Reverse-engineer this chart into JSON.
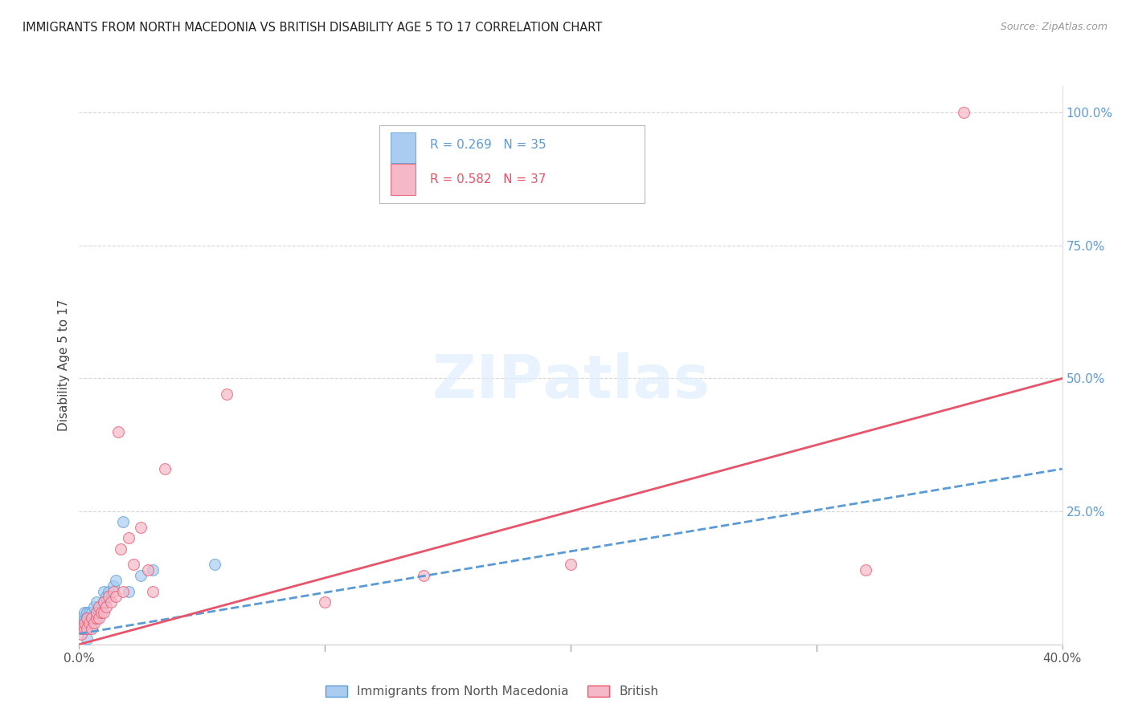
{
  "title": "IMMIGRANTS FROM NORTH MACEDONIA VS BRITISH DISABILITY AGE 5 TO 17 CORRELATION CHART",
  "source": "Source: ZipAtlas.com",
  "ylabel": "Disability Age 5 to 17",
  "xlim": [
    0.0,
    0.4
  ],
  "ylim": [
    0.0,
    1.05
  ],
  "grid_color": "#d8d8d8",
  "background_color": "#ffffff",
  "legend_label1": "Immigrants from North Macedonia",
  "legend_label2": "British",
  "blue_color": "#aaccf0",
  "pink_color": "#f5b8c8",
  "line_blue_color": "#5b9bd5",
  "line_pink_color": "#e8546a",
  "blue_scatter_x": [
    0.001,
    0.001,
    0.001,
    0.002,
    0.002,
    0.002,
    0.002,
    0.003,
    0.003,
    0.003,
    0.003,
    0.004,
    0.004,
    0.004,
    0.005,
    0.005,
    0.005,
    0.006,
    0.006,
    0.007,
    0.007,
    0.008,
    0.009,
    0.01,
    0.01,
    0.011,
    0.012,
    0.014,
    0.015,
    0.018,
    0.02,
    0.025,
    0.03,
    0.055,
    0.003
  ],
  "blue_scatter_y": [
    0.03,
    0.04,
    0.05,
    0.03,
    0.04,
    0.05,
    0.06,
    0.03,
    0.04,
    0.05,
    0.06,
    0.04,
    0.05,
    0.06,
    0.04,
    0.05,
    0.06,
    0.05,
    0.07,
    0.05,
    0.08,
    0.06,
    0.07,
    0.08,
    0.1,
    0.09,
    0.1,
    0.11,
    0.12,
    0.23,
    0.1,
    0.13,
    0.14,
    0.15,
    0.01
  ],
  "pink_scatter_x": [
    0.001,
    0.001,
    0.002,
    0.002,
    0.003,
    0.003,
    0.004,
    0.005,
    0.005,
    0.006,
    0.007,
    0.007,
    0.008,
    0.008,
    0.009,
    0.01,
    0.01,
    0.011,
    0.012,
    0.013,
    0.014,
    0.015,
    0.016,
    0.017,
    0.018,
    0.02,
    0.022,
    0.025,
    0.028,
    0.03,
    0.035,
    0.06,
    0.1,
    0.14,
    0.2,
    0.32,
    0.36
  ],
  "pink_scatter_y": [
    0.02,
    0.03,
    0.03,
    0.04,
    0.03,
    0.05,
    0.04,
    0.03,
    0.05,
    0.04,
    0.05,
    0.06,
    0.05,
    0.07,
    0.06,
    0.06,
    0.08,
    0.07,
    0.09,
    0.08,
    0.1,
    0.09,
    0.4,
    0.18,
    0.1,
    0.2,
    0.15,
    0.22,
    0.14,
    0.1,
    0.33,
    0.47,
    0.08,
    0.13,
    0.15,
    0.14,
    1.0
  ],
  "blue_line_x0": 0.0,
  "blue_line_y0": 0.02,
  "blue_line_x1": 0.4,
  "blue_line_y1": 0.33,
  "pink_line_x0": 0.0,
  "pink_line_y0": 0.0,
  "pink_line_x1": 0.4,
  "pink_line_y1": 0.5
}
